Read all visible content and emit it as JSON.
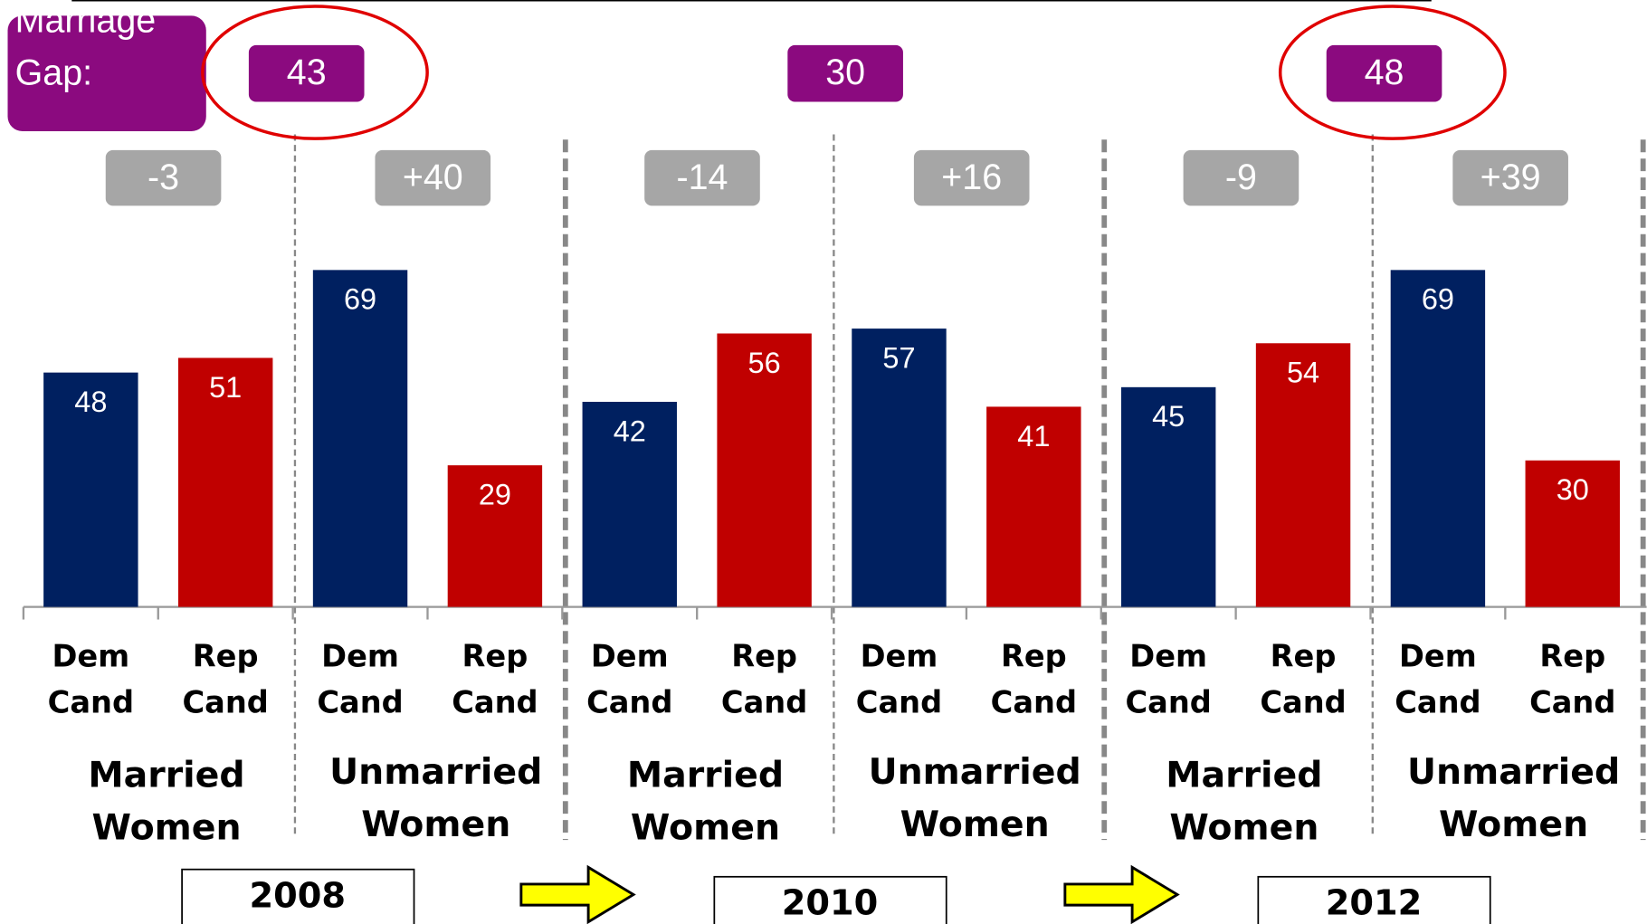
{
  "chart_data": {
    "type": "bar",
    "categories": [
      "Dem Cand",
      "Rep Cand",
      "Dem Cand",
      "Rep Cand",
      "Dem Cand",
      "Rep Cand",
      "Dem Cand",
      "Rep Cand",
      "Dem Cand",
      "Rep Cand",
      "Dem Cand",
      "Rep Cand"
    ],
    "values": [
      48,
      51,
      69,
      29,
      42,
      56,
      57,
      41,
      45,
      54,
      69,
      30
    ],
    "colors": [
      "#002060",
      "#c00000",
      "#002060",
      "#c00000",
      "#002060",
      "#c00000",
      "#002060",
      "#c00000",
      "#002060",
      "#c00000",
      "#002060",
      "#c00000"
    ],
    "ylim": [
      0,
      100
    ],
    "groups": [
      "Married Women",
      "Unmarried Women",
      "Married Women",
      "Unmarried Women",
      "Married Women",
      "Unmarried Women"
    ],
    "group_differences": [
      "-3",
      "+40",
      "-14",
      "+16",
      "-9",
      "+39"
    ],
    "gap_title": "Marriage Gap:",
    "gaps": [
      43,
      30,
      48
    ],
    "highlighted_gaps": [
      true,
      false,
      true
    ],
    "years": [
      "2008",
      "2010",
      "2012"
    ]
  }
}
